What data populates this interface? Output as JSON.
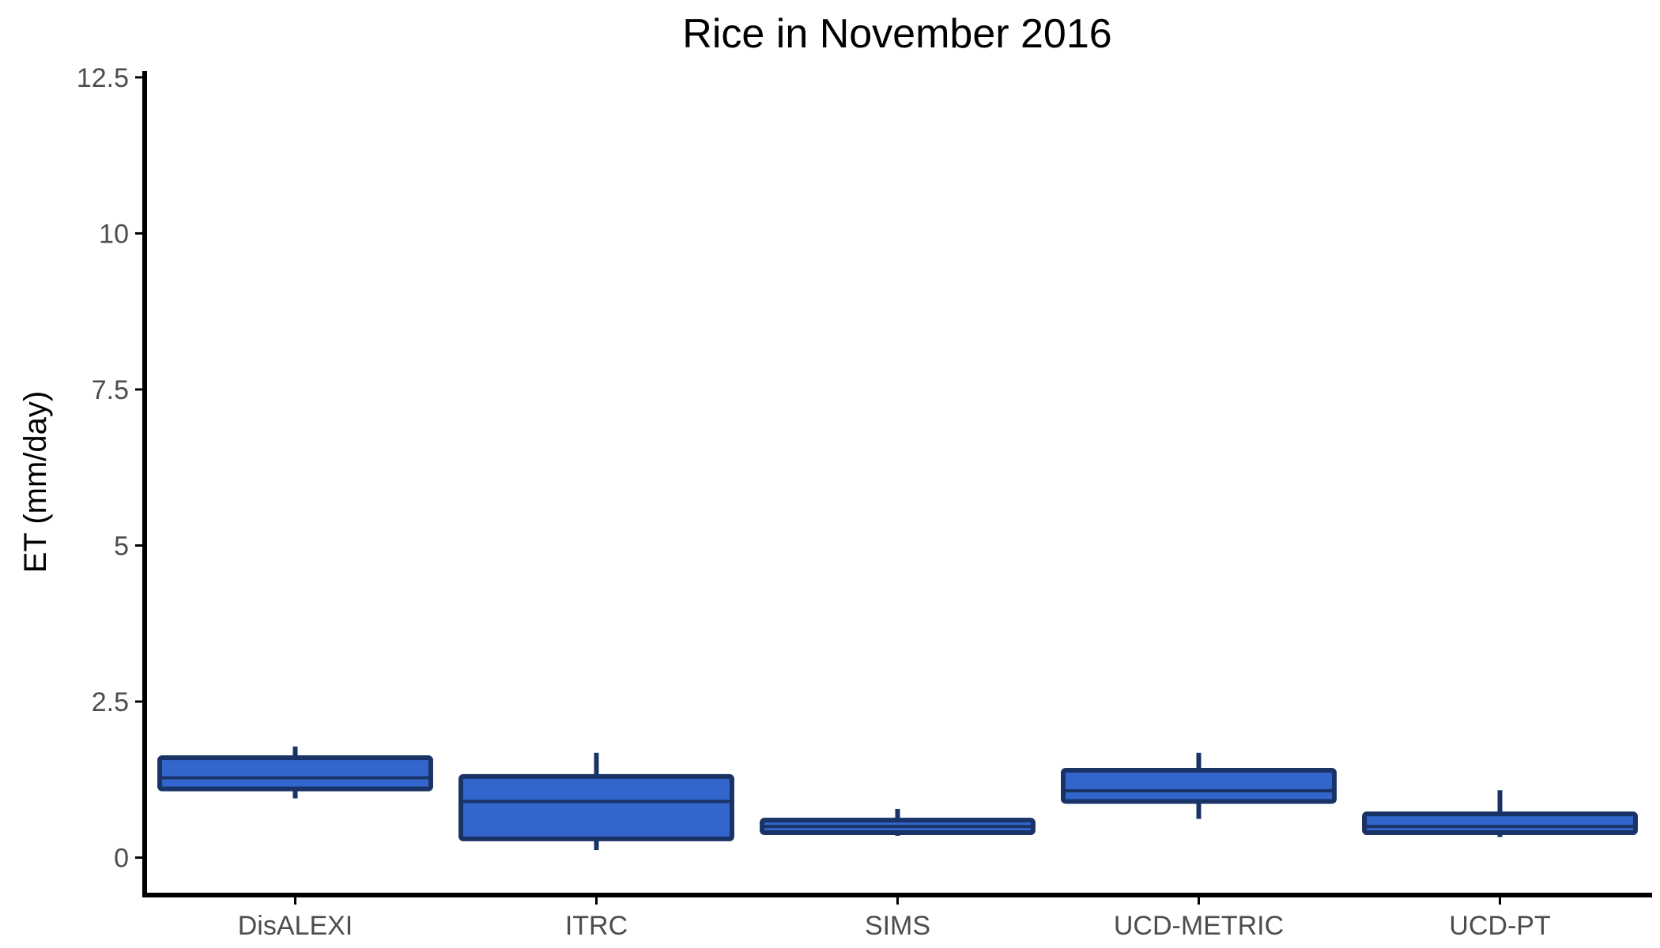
{
  "chart_data": {
    "type": "boxplot",
    "title": "Rice in November 2016",
    "xlabel": "",
    "ylabel": "ET (mm/day)",
    "ylim": [
      -0.6,
      12.6
    ],
    "yticks": [
      0,
      2.5,
      5,
      7.5,
      10,
      12.5
    ],
    "ytick_labels": [
      "0",
      "2.5",
      "5",
      "7.5",
      "10",
      "12.5"
    ],
    "categories": [
      "DisALEXI",
      "ITRC",
      "SIMS",
      "UCD-METRIC",
      "UCD-PT"
    ],
    "boxes": [
      {
        "whisker_low": 0.95,
        "q1": 1.1,
        "median": 1.28,
        "q3": 1.6,
        "whisker_high": 1.78
      },
      {
        "whisker_low": 0.12,
        "q1": 0.3,
        "median": 0.9,
        "q3": 1.3,
        "whisker_high": 1.68
      },
      {
        "whisker_low": 0.35,
        "q1": 0.4,
        "median": 0.5,
        "q3": 0.6,
        "whisker_high": 0.78
      },
      {
        "whisker_low": 0.62,
        "q1": 0.9,
        "median": 1.07,
        "q3": 1.4,
        "whisker_high": 1.68
      },
      {
        "whisker_low": 0.33,
        "q1": 0.4,
        "median": 0.5,
        "q3": 0.7,
        "whisker_high": 1.08
      }
    ],
    "grid": false,
    "legend": "none",
    "colors": {
      "fill": "#3366cc",
      "stroke": "#1a3366"
    }
  }
}
